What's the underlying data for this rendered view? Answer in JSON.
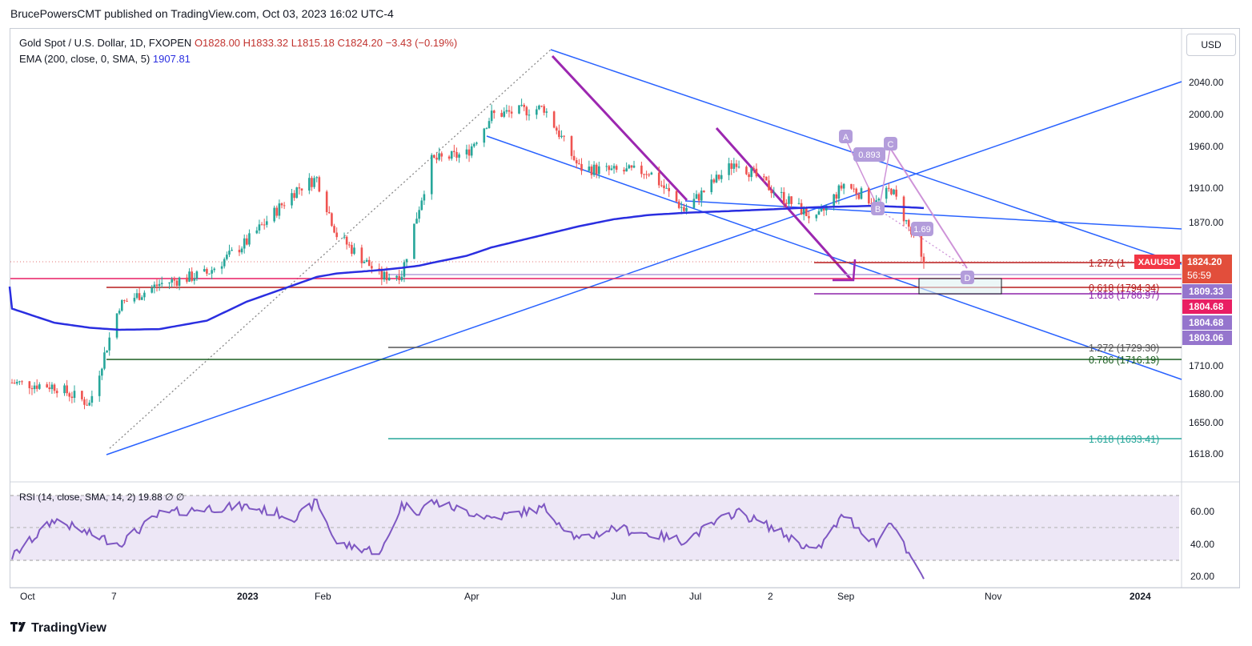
{
  "header": {
    "publisher": "BrucePowersCMT published on TradingView.com, Oct 03, 2023 16:02 UTC-4"
  },
  "legend": {
    "symbol": "Gold Spot / U.S. Dollar, 1D, FXOPEN",
    "open": "O1828.00",
    "high": "H1833.32",
    "low": "L1815.18",
    "close": "C1824.20",
    "change": "−3.43 (−0.19%)",
    "ema_label": "EMA (200, close, 0, SMA, 5)",
    "ema_value": "1907.81",
    "rsi_label": "RSI (14, close, SMA, 14, 2)",
    "rsi_value": "19.88",
    "rsi_extra": "∅ ∅"
  },
  "currency_button": "USD",
  "branding": {
    "logo_icon": "tradingview-logo-icon",
    "name": "TradingView"
  },
  "colors": {
    "up_candle": "#26a69a",
    "down_candle": "#ef5350",
    "ema": "#2a2ee0",
    "trendline": "#2962ff",
    "rsi_line": "#7e57c2",
    "rsi_band": "#ede7f6",
    "fib_red": "#b71c1c",
    "fib_green": "#1b5e20",
    "fib_teal": "#26a69a",
    "fib_gray": "#555555",
    "magenta": "#e91e63",
    "purple_label": "#b39ddb"
  },
  "price_axis_labels": [
    "2040.00",
    "2000.00",
    "1960.00",
    "1910.00",
    "1870.00",
    "1710.00",
    "1680.00",
    "1650.00",
    "1618.00"
  ],
  "price_tags": {
    "last_price": "1824.20",
    "countdown": "56:59",
    "symbol_tag": "XAUUSD",
    "p1809": "1809.33",
    "p1804a": "1804.68",
    "p1804b": "1804.68",
    "p1803": "1803.06"
  },
  "time_axis_labels": [
    "Oct",
    "7",
    "2023",
    "Feb",
    "Apr",
    "Jun",
    "Jul",
    "2",
    "Sep",
    "Nov",
    "2024"
  ],
  "fib_labels": {
    "f1272_top": "1.272 (1",
    "f0618": "0.618 (1794.34)",
    "f1618_top": "1.618 (1786.97)",
    "f1272": "1.272 (1729.30)",
    "f0786": "0.786 (1716.19)",
    "f1618": "1.618 (1633.41)"
  },
  "pattern_labels": {
    "a": "A",
    "b": "B",
    "c": "C",
    "d": "D",
    "r1": "0.893",
    "r2": "1.69"
  },
  "rsi_axis_labels": [
    "60.00",
    "40.00",
    "20.00"
  ],
  "chart_data": {
    "type": "line",
    "title": "Gold Spot / U.S. Dollar, 1D, FXOPEN",
    "xlabel": "",
    "ylabel": "",
    "ylim": [
      1600,
      2080
    ],
    "x": [
      "2022-10-03",
      "2022-10-20",
      "2022-11-03",
      "2022-11-15",
      "2022-12-01",
      "2022-12-20",
      "2023-01-05",
      "2023-01-25",
      "2023-02-02",
      "2023-02-10",
      "2023-02-28",
      "2023-03-08",
      "2023-03-15",
      "2023-03-20",
      "2023-04-03",
      "2023-04-13",
      "2023-05-04",
      "2023-05-18",
      "2023-06-01",
      "2023-06-15",
      "2023-06-29",
      "2023-07-20",
      "2023-08-03",
      "2023-08-21",
      "2023-09-01",
      "2023-09-14",
      "2023-09-20",
      "2023-09-27",
      "2023-10-03"
    ],
    "series": [
      {
        "name": "Gold Spot / U.S. Dollar",
        "values": [
          1660,
          1655,
          1630,
          1770,
          1800,
          1815,
          1860,
          1935,
          1950,
          1870,
          1810,
          1815,
          1910,
          1975,
          1985,
          2040,
          2050,
          1965,
          1960,
          1960,
          1905,
          1975,
          1935,
          1890,
          1942,
          1915,
          1935,
          1880,
          1824.2
        ]
      },
      {
        "name": "EMA (200, close, 0, SMA, 5)",
        "values": [
          1765,
          1745,
          1738,
          1735,
          1736,
          1748,
          1775,
          1800,
          1810,
          1815,
          1820,
          1823,
          1826,
          1830,
          1840,
          1852,
          1870,
          1882,
          1892,
          1898,
          1901,
          1904,
          1906,
          1909,
          1910,
          1911,
          1910,
          1909,
          1907.81
        ]
      }
    ],
    "annotations": [
      "0.618 (1794.34)",
      "1.618 (1786.97)",
      "1.272 (1729.30)",
      "0.786 (1716.19)",
      "1.618 (1633.41)",
      "A",
      "B",
      "C",
      "D",
      "0.893",
      "1.69"
    ],
    "rsi": {
      "name": "RSI (14, close, SMA, 14, 2)",
      "ylim": [
        15,
        75
      ],
      "values": [
        32,
        55,
        46,
        40,
        58,
        62,
        63,
        56,
        66,
        40,
        35,
        64,
        60,
        66,
        60,
        56,
        62,
        42,
        50,
        46,
        42,
        60,
        50,
        35,
        58,
        40,
        55,
        32,
        19.88
      ]
    },
    "grid": false,
    "legend": "top-left"
  }
}
